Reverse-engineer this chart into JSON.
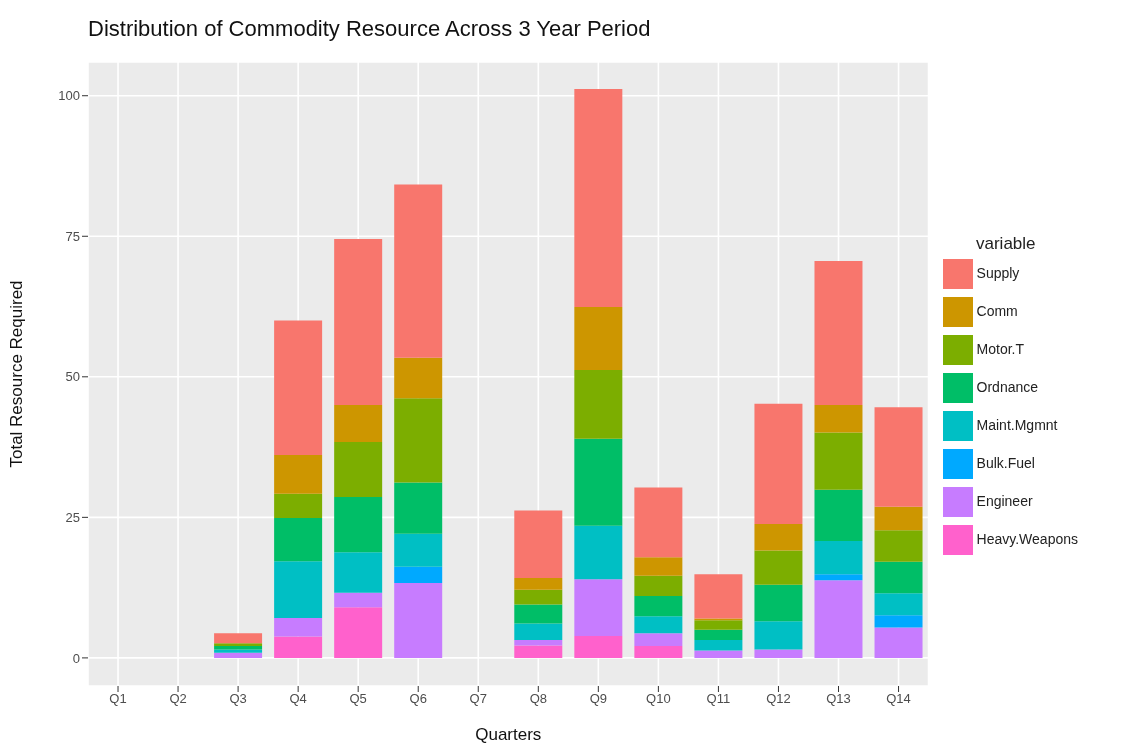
{
  "chart_data": {
    "type": "bar",
    "title": "Distribution of Commodity Resource Across 3 Year Period",
    "xlabel": "Quarters",
    "ylabel": "Total Resource Required",
    "legend_title": "variable",
    "categories": [
      "Q1",
      "Q2",
      "Q3",
      "Q4",
      "Q5",
      "Q6",
      "Q7",
      "Q8",
      "Q9",
      "Q10",
      "Q11",
      "Q12",
      "Q13",
      "Q14"
    ],
    "stacked": true,
    "ylim": [
      -5,
      106
    ],
    "yticks": [
      0,
      25,
      50,
      75,
      100
    ],
    "grid": true,
    "legend": "right",
    "series": [
      {
        "name": "Heavy.Weapons",
        "color": "#ff61cc",
        "values": [
          0,
          0,
          0,
          3.8,
          9.0,
          0,
          0,
          2.2,
          3.9,
          2.1,
          0,
          0,
          0,
          0
        ]
      },
      {
        "name": "Engineer",
        "color": "#c77cff",
        "values": [
          0,
          0,
          0.9,
          3.3,
          2.6,
          13.3,
          0,
          1.0,
          10.1,
          2.3,
          1.3,
          1.5,
          13.8,
          5.4
        ]
      },
      {
        "name": "Bulk.Fuel",
        "color": "#00a9ff",
        "values": [
          0,
          0,
          0,
          0,
          0,
          2.9,
          0,
          0,
          0,
          0,
          0,
          0,
          1.1,
          2.2
        ]
      },
      {
        "name": "Maint.Mgmnt",
        "color": "#00bfc4",
        "values": [
          0,
          0,
          0.6,
          10.1,
          7.2,
          5.9,
          0,
          2.9,
          9.5,
          3.0,
          1.9,
          5.0,
          5.9,
          3.9
        ]
      },
      {
        "name": "Ordnance",
        "color": "#00be67",
        "values": [
          0,
          0,
          0.6,
          7.7,
          9.8,
          9.1,
          0,
          3.4,
          15.5,
          3.6,
          1.8,
          6.5,
          9.1,
          5.6
        ]
      },
      {
        "name": "Motor.T",
        "color": "#7cae00",
        "values": [
          0,
          0,
          0.5,
          4.3,
          9.8,
          15.0,
          0,
          2.6,
          12.2,
          3.6,
          1.7,
          6.1,
          10.2,
          5.6
        ]
      },
      {
        "name": "Comm",
        "color": "#cd9600",
        "values": [
          0,
          0,
          0,
          6.9,
          6.6,
          7.2,
          0,
          2.1,
          11.2,
          3.3,
          0.3,
          4.7,
          4.9,
          4.2
        ]
      },
      {
        "name": "Supply",
        "color": "#f8766d",
        "values": [
          0,
          0,
          1.8,
          23.9,
          29.5,
          30.8,
          0,
          12.0,
          38.8,
          12.4,
          7.9,
          21.4,
          25.6,
          17.7
        ]
      }
    ]
  }
}
